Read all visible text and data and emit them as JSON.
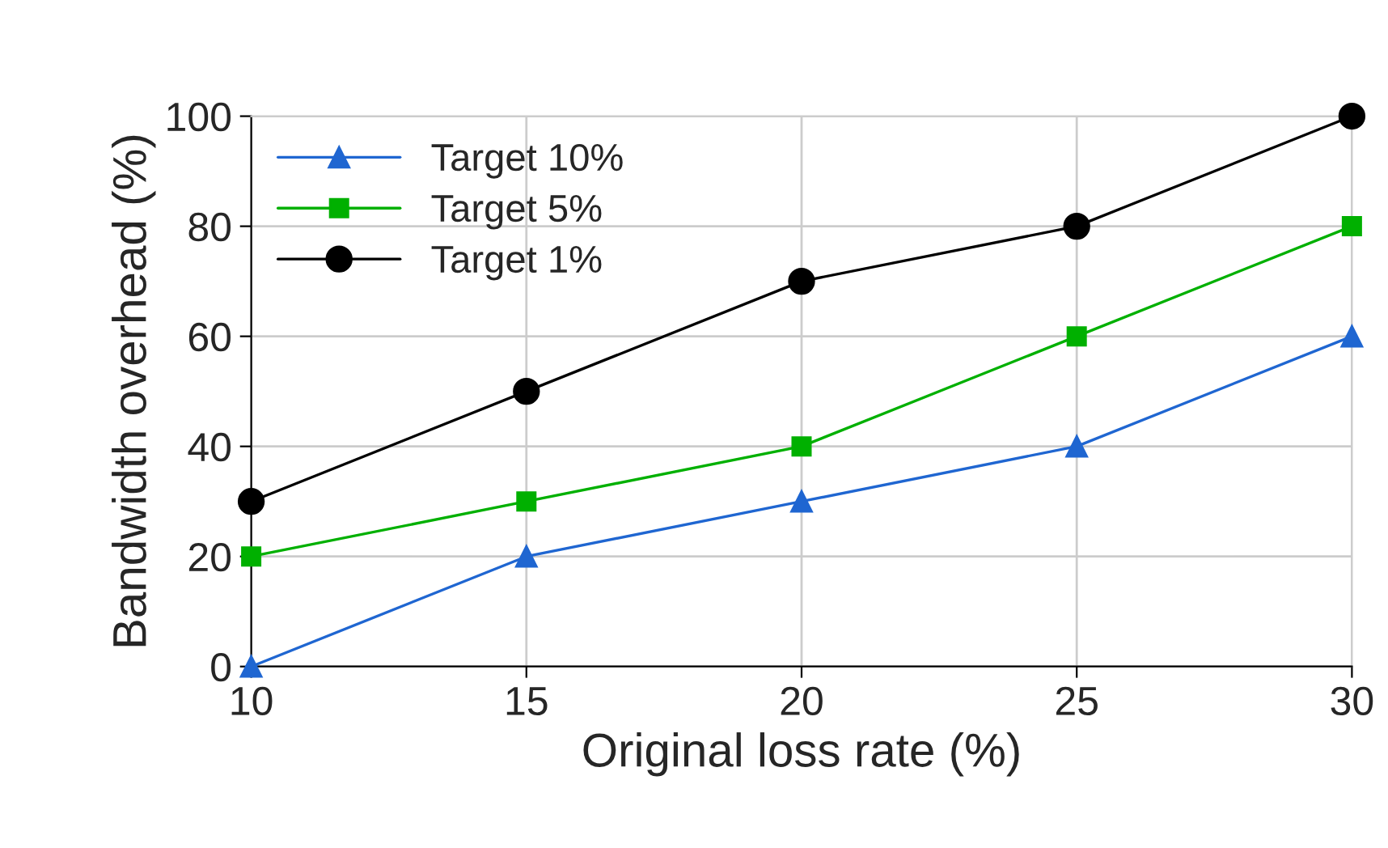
{
  "chart_data": {
    "type": "line",
    "xlabel": "Original loss rate (%)",
    "ylabel": "Bandwidth overhead (%)",
    "x": [
      10,
      15,
      20,
      25,
      30
    ],
    "series": [
      {
        "name": "Target 10%",
        "color": "#1f66d1",
        "marker": "triangle",
        "values": [
          0,
          20,
          30,
          40,
          60
        ]
      },
      {
        "name": "Target 5%",
        "color": "#00b000",
        "marker": "square",
        "values": [
          20,
          30,
          40,
          60,
          80
        ]
      },
      {
        "name": "Target 1%",
        "color": "#000000",
        "marker": "circle",
        "values": [
          30,
          50,
          70,
          80,
          100
        ]
      }
    ],
    "xlim": [
      10,
      30
    ],
    "xticks": [
      10,
      15,
      20,
      25,
      30
    ],
    "ylim": [
      0,
      100
    ],
    "yticks": [
      0,
      20,
      40,
      60,
      80,
      100
    ],
    "grid": true,
    "legend": "top left",
    "line_style": "solid"
  }
}
